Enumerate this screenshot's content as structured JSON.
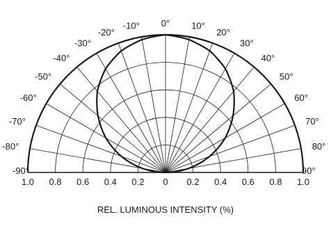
{
  "chart_data": {
    "type": "polar",
    "xlabel": "REL. LUMINOUS INTENSITY (%)",
    "radial_ticks": [
      "1.0",
      "0.8",
      "0.6",
      "0.4",
      "0.2",
      "0",
      "0.2",
      "0.4",
      "0.6",
      "0.8",
      "1.0"
    ],
    "radial_range": [
      0,
      1.0
    ],
    "angle_labels": [
      {
        "angle": -90,
        "text": "-90°"
      },
      {
        "angle": -80,
        "text": "-80°"
      },
      {
        "angle": -70,
        "text": "-70°"
      },
      {
        "angle": -60,
        "text": "-60°"
      },
      {
        "angle": -50,
        "text": "-50°"
      },
      {
        "angle": -40,
        "text": "-40°"
      },
      {
        "angle": -30,
        "text": "-30°"
      },
      {
        "angle": -20,
        "text": "-20°"
      },
      {
        "angle": -10,
        "text": "-10°"
      },
      {
        "angle": 0,
        "text": "0°"
      },
      {
        "angle": 10,
        "text": "10°"
      },
      {
        "angle": 20,
        "text": "20°"
      },
      {
        "angle": 30,
        "text": "30°"
      },
      {
        "angle": 40,
        "text": "40°"
      },
      {
        "angle": 50,
        "text": "50°"
      },
      {
        "angle": 60,
        "text": "60°"
      },
      {
        "angle": 70,
        "text": "70°"
      },
      {
        "angle": 80,
        "text": "80°"
      },
      {
        "angle": 90,
        "text": "90°"
      }
    ],
    "series": [
      {
        "angles": [
          -90,
          -80,
          -70,
          -60,
          -50,
          -40,
          -30,
          -20,
          -10,
          0,
          10,
          20,
          30,
          40,
          50,
          60,
          70,
          80,
          90
        ],
        "values": [
          0,
          0.17,
          0.34,
          0.5,
          0.64,
          0.77,
          0.87,
          0.94,
          0.98,
          1.0,
          0.98,
          0.94,
          0.87,
          0.77,
          0.64,
          0.5,
          0.34,
          0.17,
          0
        ]
      }
    ],
    "grid": true
  }
}
